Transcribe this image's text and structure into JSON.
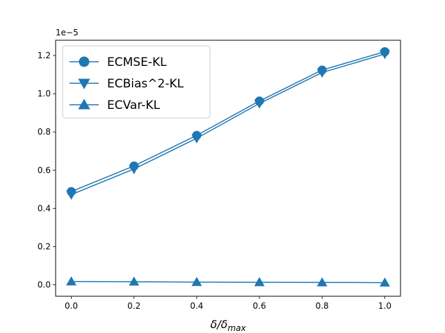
{
  "chart_data": {
    "type": "line",
    "x": [
      0.0,
      0.2,
      0.4,
      0.6,
      0.8,
      1.0
    ],
    "series": [
      {
        "name": "ECMSE-KL",
        "marker": "circle",
        "values": [
          4.88e-06,
          6.22e-06,
          7.82e-06,
          9.62e-06,
          1.124e-05,
          1.22e-05
        ]
      },
      {
        "name": "ECBias^2-KL",
        "marker": "triangle-down",
        "values": [
          4.72e-06,
          6.06e-06,
          7.67e-06,
          9.49e-06,
          1.111e-05,
          1.208e-05
        ]
      },
      {
        "name": "ECVar-KL",
        "marker": "triangle-up",
        "values": [
          1.7e-07,
          1.6e-07,
          1.4e-07,
          1.3e-07,
          1.2e-07,
          1.1e-07
        ]
      }
    ],
    "color": "#1f77b4",
    "xlabel_main": "δ/δ",
    "xlabel_sub": "max",
    "offset_text": "1e−5",
    "x_ticks": [
      "0.0",
      "0.2",
      "0.4",
      "0.6",
      "0.8",
      "1.0"
    ],
    "y_ticks": [
      "0.0",
      "0.2",
      "0.4",
      "0.6",
      "0.8",
      "1.0",
      "1.2"
    ],
    "y_tick_values": [
      0,
      2e-06,
      4e-06,
      6e-06,
      8e-06,
      1e-05,
      1.2e-05
    ],
    "xlim": [
      -0.05,
      1.05
    ],
    "ylim": [
      -6e-07,
      1.28e-05
    ],
    "grid": false,
    "legend_position": "upper-left"
  }
}
